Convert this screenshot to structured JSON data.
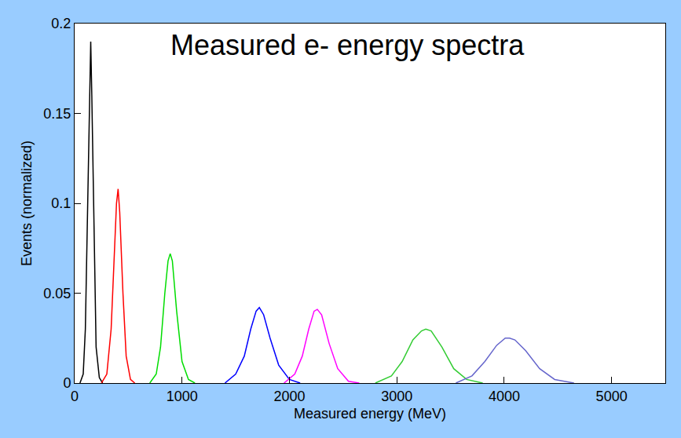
{
  "chart_data": {
    "type": "line",
    "title": "Measured e- energy spectra",
    "x_label": "Measured energy (MeV)",
    "y_label": "Events (normalized)",
    "xlim": [
      0,
      5500
    ],
    "ylim": [
      0,
      0.2
    ],
    "xticks": [
      0,
      1000,
      2000,
      3000,
      4000,
      5000
    ],
    "yticks": [
      0,
      0.05,
      0.1,
      0.15,
      0.2
    ],
    "grid": false,
    "series": [
      {
        "color": "#000000",
        "x": [
          50,
          80,
          100,
          120,
          140,
          150,
          160,
          180,
          200,
          230,
          260
        ],
        "values": [
          0,
          0.005,
          0.03,
          0.1,
          0.17,
          0.19,
          0.16,
          0.08,
          0.02,
          0.003,
          0
        ]
      },
      {
        "color": "#ff0000",
        "x": [
          250,
          300,
          340,
          370,
          390,
          405,
          420,
          450,
          480,
          520,
          560
        ],
        "values": [
          0,
          0.005,
          0.03,
          0.075,
          0.1,
          0.108,
          0.095,
          0.05,
          0.015,
          0.002,
          0
        ]
      },
      {
        "color": "#00dd00",
        "x": [
          700,
          760,
          800,
          840,
          870,
          890,
          910,
          950,
          1000,
          1060,
          1120
        ],
        "values": [
          0,
          0.005,
          0.02,
          0.05,
          0.068,
          0.072,
          0.068,
          0.04,
          0.012,
          0.002,
          0
        ]
      },
      {
        "color": "#0000ff",
        "x": [
          1400,
          1500,
          1580,
          1640,
          1690,
          1720,
          1760,
          1820,
          1900,
          2000,
          2100
        ],
        "values": [
          0,
          0.005,
          0.015,
          0.03,
          0.04,
          0.042,
          0.038,
          0.025,
          0.01,
          0.002,
          0
        ]
      },
      {
        "color": "#ff00ff",
        "x": [
          1950,
          2050,
          2120,
          2180,
          2230,
          2260,
          2300,
          2370,
          2450,
          2550,
          2650
        ],
        "values": [
          0,
          0.005,
          0.015,
          0.03,
          0.04,
          0.041,
          0.038,
          0.022,
          0.008,
          0.001,
          0
        ]
      },
      {
        "color": "#33cc33",
        "x": [
          2800,
          2950,
          3050,
          3150,
          3230,
          3270,
          3320,
          3420,
          3530,
          3650,
          3800
        ],
        "values": [
          0,
          0.004,
          0.012,
          0.024,
          0.029,
          0.03,
          0.029,
          0.02,
          0.008,
          0.002,
          0
        ]
      },
      {
        "color": "#6666cc",
        "x": [
          3550,
          3700,
          3820,
          3930,
          4010,
          4050,
          4100,
          4200,
          4330,
          4470,
          4650
        ],
        "values": [
          0,
          0.004,
          0.012,
          0.021,
          0.025,
          0.025,
          0.024,
          0.018,
          0.008,
          0.002,
          0
        ]
      }
    ]
  }
}
